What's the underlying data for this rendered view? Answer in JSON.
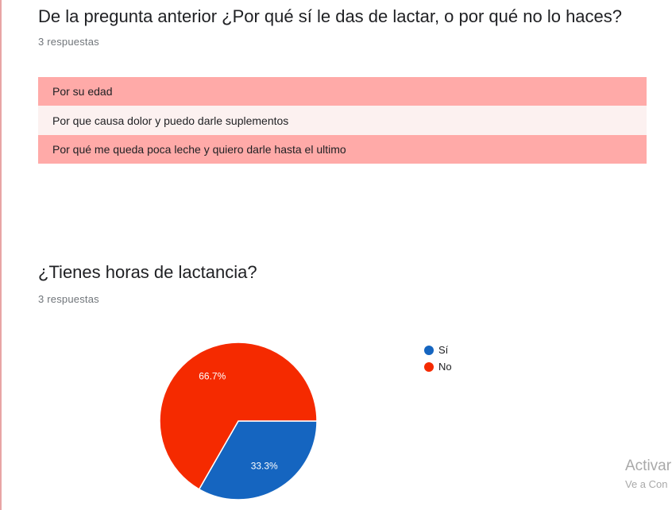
{
  "question1": {
    "title": "De la pregunta anterior ¿Por qué sí le das de lactar, o por qué no lo haces?",
    "count": "3 respuestas",
    "answers": [
      "Por su edad",
      "Por que causa dolor y puedo darle suplementos",
      "Por qué me queda poca leche y quiero darle hasta el ultimo"
    ]
  },
  "question2": {
    "title": "¿Tienes horas de lactancia?",
    "count": "3 respuestas"
  },
  "chart_data": {
    "type": "pie",
    "title": "¿Tienes horas de lactancia?",
    "series": [
      {
        "name": "Sí",
        "value": 33.3,
        "label": "33.3%",
        "color": "#1565c0"
      },
      {
        "name": "No",
        "value": 66.7,
        "label": "66.7%",
        "color": "#f52a00"
      }
    ],
    "legend_position": "right"
  },
  "watermark": {
    "line1": "Activar",
    "line2": "Ve a Con"
  }
}
